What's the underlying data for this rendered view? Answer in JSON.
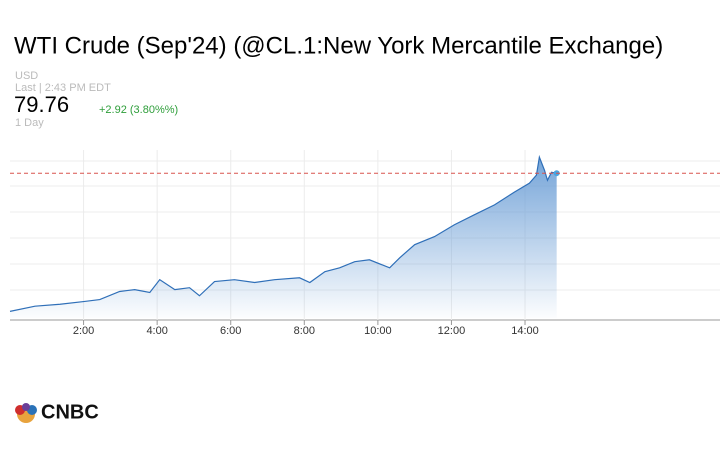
{
  "chart_data": {
    "type": "area",
    "title": "WTI Crude (Sep'24) (@CL.1:New York Mercantile Exchange)",
    "x": [
      0,
      0.68,
      1.36,
      2.03,
      2.44,
      2.98,
      3.39,
      3.8,
      4.07,
      4.48,
      4.88,
      5.15,
      5.56,
      6.1,
      6.65,
      7.19,
      7.87,
      8.15,
      8.56,
      8.96,
      9.37,
      9.77,
      10.32,
      10.59,
      11.0,
      11.54,
      12.08,
      12.62,
      13.17,
      13.71,
      14.12,
      14.31,
      14.39,
      14.53,
      14.61,
      14.72,
      14.86
    ],
    "series": [
      {
        "color": "#2f6fb8",
        "values": [
          76.84,
          76.95,
          76.99,
          77.05,
          77.09,
          77.26,
          77.3,
          77.24,
          77.51,
          77.3,
          77.34,
          77.17,
          77.47,
          77.51,
          77.45,
          77.51,
          77.55,
          77.45,
          77.68,
          77.76,
          77.89,
          77.93,
          77.76,
          77.97,
          78.25,
          78.42,
          78.67,
          78.88,
          79.09,
          79.36,
          79.55,
          79.72,
          80.1,
          79.82,
          79.61,
          79.78,
          79.76
        ]
      }
    ],
    "xlim": [
      0,
      19.3
    ],
    "xticks": [
      {
        "value": 2,
        "label": "2:00"
      },
      {
        "value": 4,
        "label": "4:00"
      },
      {
        "value": 6,
        "label": "6:00"
      },
      {
        "value": 8,
        "label": "8:00"
      },
      {
        "value": 10,
        "label": "10:00"
      },
      {
        "value": 12,
        "label": "12:00"
      },
      {
        "value": 14,
        "label": "14:00"
      }
    ],
    "ylim": [
      76.7,
      80.25
    ],
    "grid": true
  },
  "quote": {
    "currency": "USD",
    "last_time": "Last | 2:43 PM EDT",
    "price": 79.76,
    "change": "+2.92 (3.80%%)",
    "range": "1 Day"
  },
  "logo": "CNBC"
}
